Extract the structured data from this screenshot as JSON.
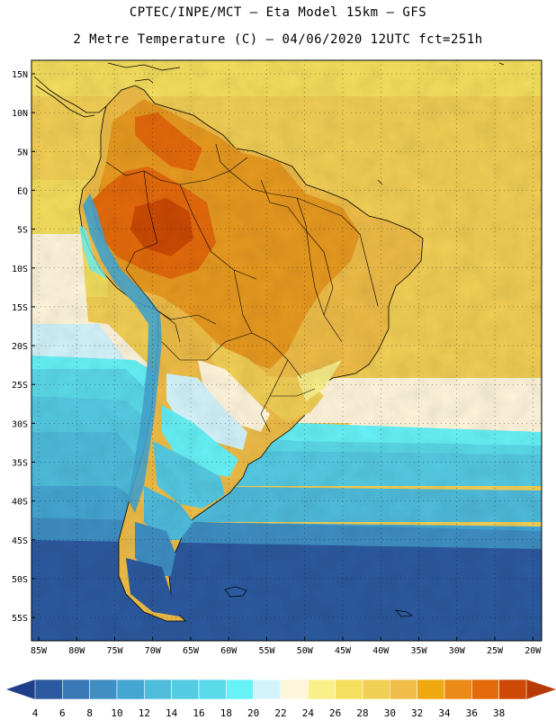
{
  "header": {
    "line1": "CPTEC/INPE/MCT –  Eta Model 15km – GFS",
    "line2": "2 Metre Temperature (C) – 04/06/2020 12UTC fct=251h"
  },
  "map": {
    "variable": "2 Metre Temperature",
    "units": "C",
    "lat_labels": [
      "15N",
      "10N",
      "5N",
      "EQ",
      "5S",
      "10S",
      "15S",
      "20S",
      "25S",
      "30S",
      "35S",
      "40S",
      "45S",
      "50S",
      "55S"
    ],
    "lon_labels": [
      "85W",
      "80W",
      "75W",
      "70W",
      "65W",
      "60W",
      "55W",
      "50W",
      "45W",
      "40W",
      "35W",
      "30W",
      "25W",
      "20W"
    ]
  },
  "colorbar": {
    "labels": [
      "4",
      "6",
      "8",
      "10",
      "12",
      "14",
      "16",
      "18",
      "20",
      "22",
      "24",
      "26",
      "28",
      "30",
      "32",
      "34",
      "36",
      "38"
    ],
    "colors": [
      "#2c5aa0",
      "#3a78b8",
      "#3f8fc4",
      "#45a6d2",
      "#4fbcdc",
      "#55cbe3",
      "#5bdaea",
      "#66f2f7",
      "#d4f4fb",
      "#fff6dc",
      "#faf08a",
      "#f5df5e",
      "#f2cf55",
      "#efbd48",
      "#f0a810",
      "#ec8a18",
      "#e46a0c",
      "#cc4a05"
    ],
    "low_arrow_color": "#1f3f8a",
    "high_arrow_color": "#b83a06"
  },
  "legend_colors": {
    "ocean_south": "#2c5aa0",
    "ocean_mid": "#45a6d2",
    "ocean_cool": "#55cbe3",
    "ocean_tropical": "#f2cf55",
    "land_hot": "#e46a0c",
    "land_warm": "#efbd48",
    "andes": "#66f2f7"
  }
}
